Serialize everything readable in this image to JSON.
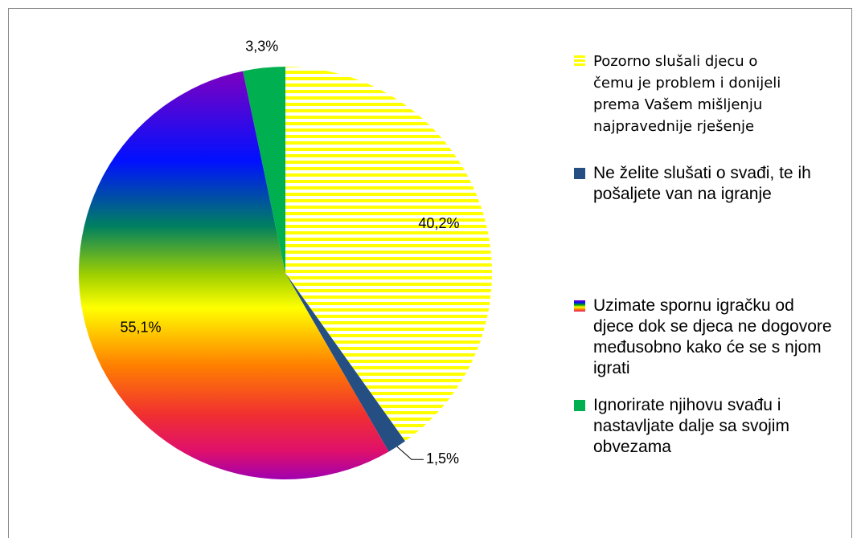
{
  "chart_data": {
    "type": "pie",
    "categories": [
      "Pozorno slušali djecu o čemu je problem i donijeli prema Vašem mišljenju najpravednije rješenje",
      "Ne želite slušati o svađi, te ih pošaljete van na igranje",
      "Uzimate spornu igračku od djece dok se djeca ne dogovore međusobno kako će se s njom igrati",
      "Ignorirate njihovu svađu i nastavljate dalje sa svojim obvezama"
    ],
    "values": [
      40.2,
      1.5,
      55.1,
      3.3
    ],
    "value_labels": [
      "40,2%",
      "1,5%",
      "55,1%",
      "3,3%"
    ],
    "colors": [
      "#ffff00",
      "#254e82",
      "#ffff00",
      "#00b050"
    ],
    "legend": "right"
  }
}
